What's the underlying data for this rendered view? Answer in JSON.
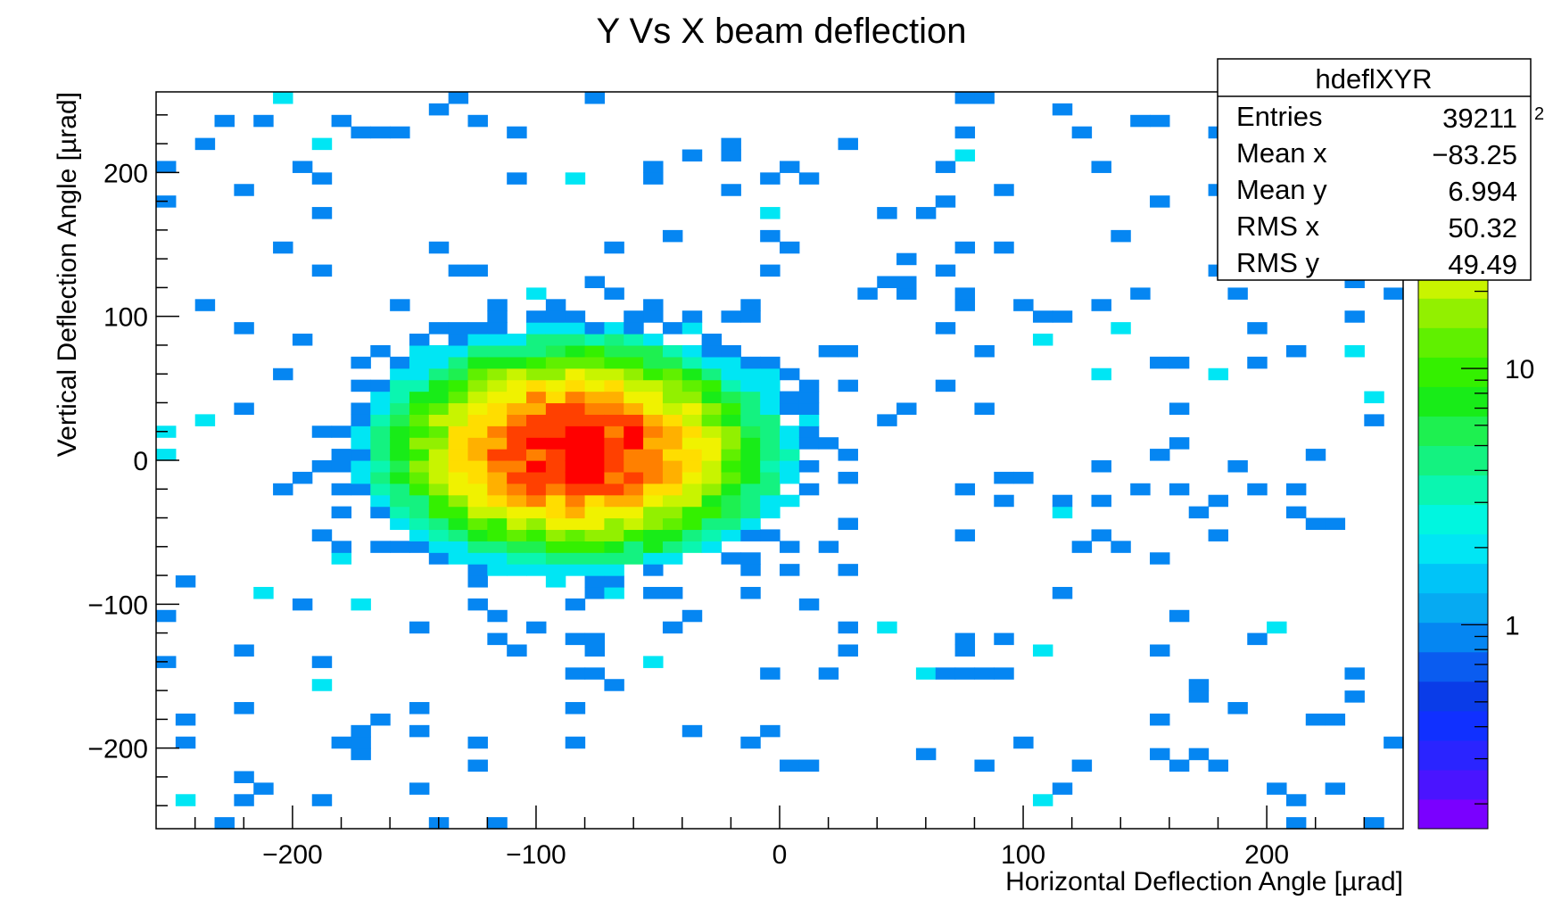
{
  "chart_data": {
    "type": "heatmap",
    "title": "Y Vs X beam deflection",
    "xlabel": "Horizontal Deflection Angle [µrad]",
    "ylabel": "Vertical Deflection Angle [µrad]",
    "xlim": [
      -256,
      256
    ],
    "ylim": [
      -256,
      256
    ],
    "bin_width": [
      8,
      8
    ],
    "x_ticks": [
      "−200",
      "−100",
      "0",
      "100",
      "200"
    ],
    "x_tick_values": [
      -200,
      -100,
      0,
      100,
      200
    ],
    "y_ticks": [
      "−200",
      "−100",
      "0",
      "100",
      "200"
    ],
    "y_tick_values": [
      -200,
      -100,
      0,
      100,
      200
    ],
    "z_scale": "log",
    "z_ticks": [
      "1",
      "10"
    ],
    "z_tick_values": [
      1,
      10
    ],
    "z_range": [
      0.16,
      120
    ],
    "z_exponent_label": "2",
    "palette": [
      "#7a00ff",
      "#4a14ff",
      "#2a24ff",
      "#1030ff",
      "#0a3ce8",
      "#0a5cf0",
      "#0586f2",
      "#06aaf2",
      "#00c4f8",
      "#00e6f4",
      "#00f6e0",
      "#0af6b0",
      "#14f280",
      "#1ef050",
      "#18ec18",
      "#34f000",
      "#60f000",
      "#92f000",
      "#c8f400",
      "#f0f200",
      "#ffdd00",
      "#ffb000",
      "#ff8000",
      "#ff4000",
      "#ff0000"
    ],
    "distribution": {
      "mean_x": -83.25,
      "mean_y": 6.994,
      "rms_x": 50.32,
      "rms_y": 49.49,
      "entries": 39211
    },
    "grid": false,
    "legend": "top-right statistics box"
  },
  "stats": {
    "name": "hdeflXYR",
    "rows": [
      {
        "label": "Entries",
        "value": "39211"
      },
      {
        "label": "Mean x",
        "value": "−83.25"
      },
      {
        "label": "Mean y",
        "value": "6.994"
      },
      {
        "label": "RMS x",
        "value": "50.32"
      },
      {
        "label": "RMS y",
        "value": "49.49"
      }
    ]
  }
}
